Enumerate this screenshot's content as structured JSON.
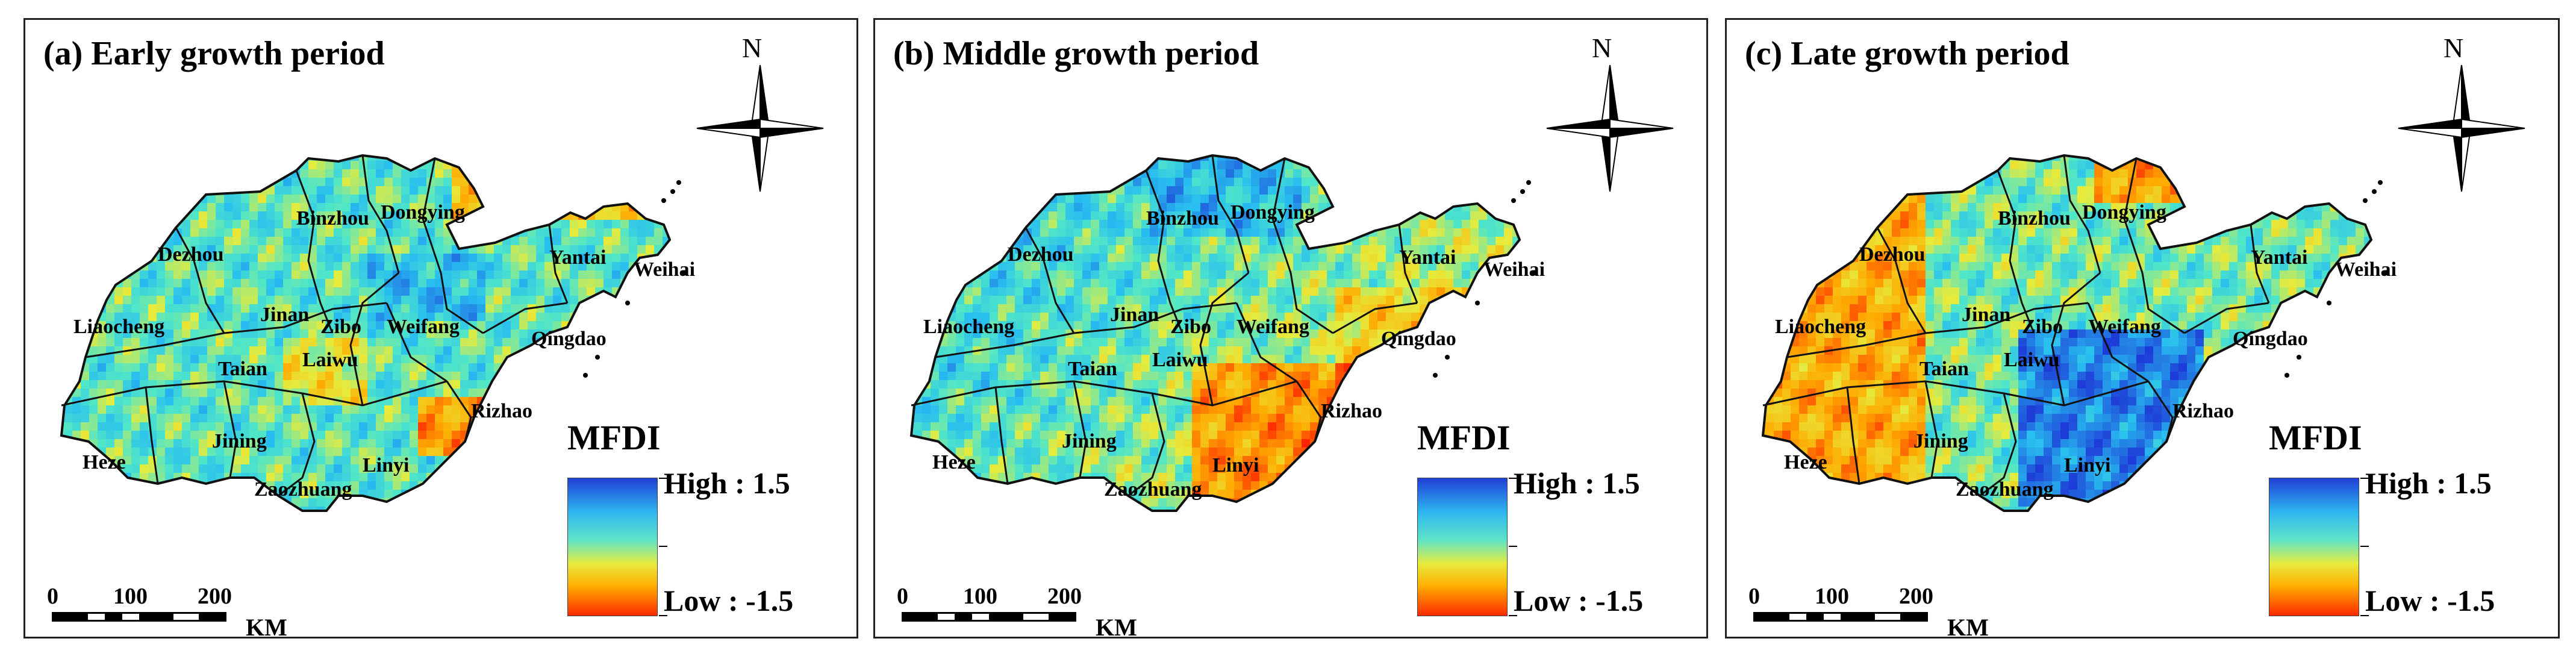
{
  "panels": [
    {
      "id": "a",
      "title": "(a) Early growth period",
      "pattern": "early"
    },
    {
      "id": "b",
      "title": "(b) Middle growth period",
      "pattern": "middle"
    },
    {
      "id": "c",
      "title": "(c) Late growth period",
      "pattern": "late"
    }
  ],
  "cities": [
    "Dezhou",
    "Binzhou",
    "Dongying",
    "Yantai",
    "Weihai",
    "Liaocheng",
    "Jinan",
    "Zibo",
    "Weifang",
    "Qingdao",
    "Taian",
    "Laiwu",
    "Rizhao",
    "Heze",
    "Jining",
    "Linyi",
    "Zaozhuang"
  ],
  "legend": {
    "title": "MFDI",
    "high": "High : 1.5",
    "low": "Low : -1.5",
    "high_color": "#1f3fd6",
    "low_color": "#ff2a00"
  },
  "north_label": "N",
  "scale": {
    "ticks": [
      "0",
      "100",
      "200"
    ],
    "unit": "KM"
  }
}
